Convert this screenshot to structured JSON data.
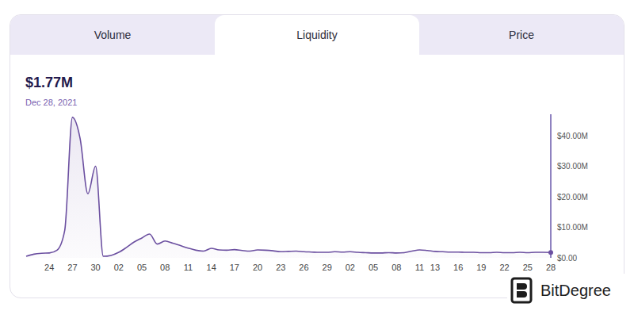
{
  "header": {
    "tabs": [
      "Volume",
      "Liquidity",
      "Price"
    ],
    "active_tab": "Liquidity",
    "value": "$1.77M",
    "date": "Dec 28, 2021"
  },
  "watermark": "BitDegree",
  "chart_data": {
    "type": "area",
    "categories": [
      null,
      null,
      null,
      "24",
      null,
      null,
      "27",
      null,
      null,
      "30",
      null,
      null,
      "02",
      null,
      null,
      "05",
      null,
      null,
      "08",
      null,
      null,
      "11",
      null,
      null,
      "14",
      null,
      null,
      "17",
      null,
      null,
      "20",
      null,
      null,
      "23",
      null,
      null,
      "26",
      null,
      null,
      "29",
      null,
      null,
      "02",
      null,
      null,
      "05",
      null,
      null,
      "08",
      null,
      null,
      "11",
      null,
      "13",
      null,
      null,
      "16",
      null,
      null,
      "19",
      null,
      null,
      "22",
      null,
      null,
      "25",
      null,
      null,
      "28"
    ],
    "values": [
      500000,
      1200000,
      1500000,
      1600000,
      2500000,
      9000000,
      46000000,
      39000000,
      21000000,
      30000000,
      500000,
      800000,
      1800000,
      3400000,
      5200000,
      6500000,
      7800000,
      4500000,
      5500000,
      4800000,
      4000000,
      3200000,
      2500000,
      2200000,
      3100000,
      2600000,
      2500000,
      2700000,
      2400000,
      2200000,
      2600000,
      2500000,
      2300000,
      2000000,
      2100000,
      2200000,
      2000000,
      1900000,
      1800000,
      1800000,
      2000000,
      1900000,
      2000000,
      1800000,
      1700000,
      1600000,
      1600000,
      1700000,
      1600000,
      1700000,
      2200000,
      2600000,
      2400000,
      2100000,
      2000000,
      1900000,
      1900000,
      1800000,
      1800000,
      1700000,
      1700000,
      1800000,
      1700000,
      1700000,
      1800000,
      1700000,
      1800000,
      1800000,
      1770000
    ],
    "color": "#6b4fa0",
    "ylim": [
      0,
      47000000
    ],
    "yticks": [
      {
        "value": 0,
        "label": "$0.00"
      },
      {
        "value": 10000000,
        "label": "$10.00M"
      },
      {
        "value": 20000000,
        "label": "$20.00M"
      },
      {
        "value": 30000000,
        "label": "$30.00M"
      },
      {
        "value": 40000000,
        "label": "$40.00M"
      }
    ]
  }
}
